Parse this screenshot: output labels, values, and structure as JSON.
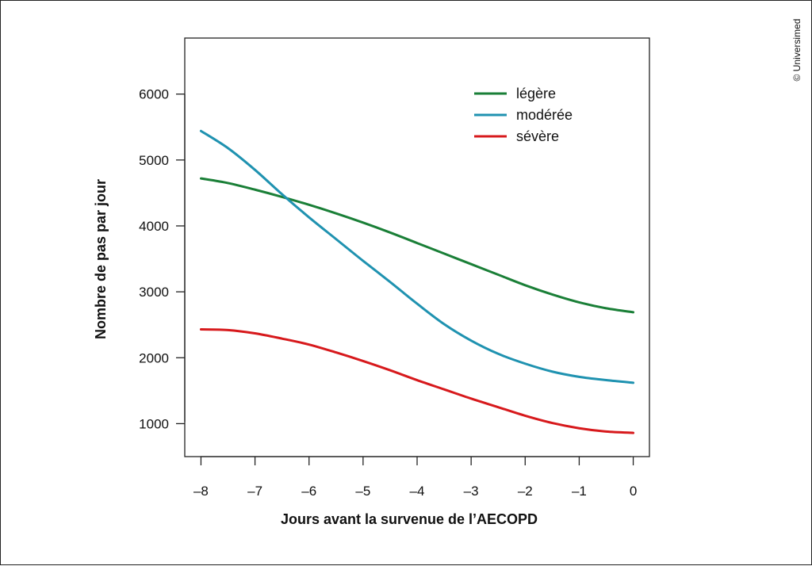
{
  "chart_data": {
    "type": "line",
    "xlabel": "Jours avant la survenue de l’AECOPD",
    "ylabel": "Nombre de pas par jour",
    "xlim": [
      -8.3,
      0.3
    ],
    "ylim": [
      500,
      6850
    ],
    "xticks": [
      -8,
      -7,
      -6,
      -5,
      -4,
      -3,
      -2,
      -1,
      0
    ],
    "xtick_labels": [
      "–8",
      "–7",
      "–6",
      "–5",
      "–4",
      "–3",
      "–2",
      "–1",
      "0"
    ],
    "yticks": [
      1000,
      2000,
      3000,
      4000,
      5000,
      6000
    ],
    "ytick_labels": [
      "1000",
      "2000",
      "3000",
      "4000",
      "5000",
      "6000"
    ],
    "grid": false,
    "legend_position": "top-right",
    "x": [
      -8,
      -7.5,
      -7,
      -6.5,
      -6,
      -5.5,
      -5,
      -4.5,
      -4,
      -3.5,
      -3,
      -2.5,
      -2,
      -1.5,
      -1,
      -0.5,
      0
    ],
    "series": [
      {
        "name": "légère",
        "color": "#1a7f37",
        "values": [
          4720,
          4650,
          4550,
          4440,
          4320,
          4190,
          4050,
          3900,
          3740,
          3580,
          3420,
          3260,
          3100,
          2960,
          2840,
          2750,
          2690
        ]
      },
      {
        "name": "modérée",
        "color": "#1f92b0",
        "values": [
          5440,
          5180,
          4850,
          4480,
          4130,
          3800,
          3470,
          3150,
          2820,
          2510,
          2260,
          2060,
          1910,
          1790,
          1710,
          1660,
          1620
        ]
      },
      {
        "name": "sévère",
        "color": "#d7191c",
        "values": [
          2430,
          2420,
          2370,
          2290,
          2200,
          2080,
          1950,
          1810,
          1660,
          1520,
          1380,
          1250,
          1120,
          1010,
          930,
          880,
          860
        ]
      }
    ]
  },
  "copyright": "© Universimed"
}
